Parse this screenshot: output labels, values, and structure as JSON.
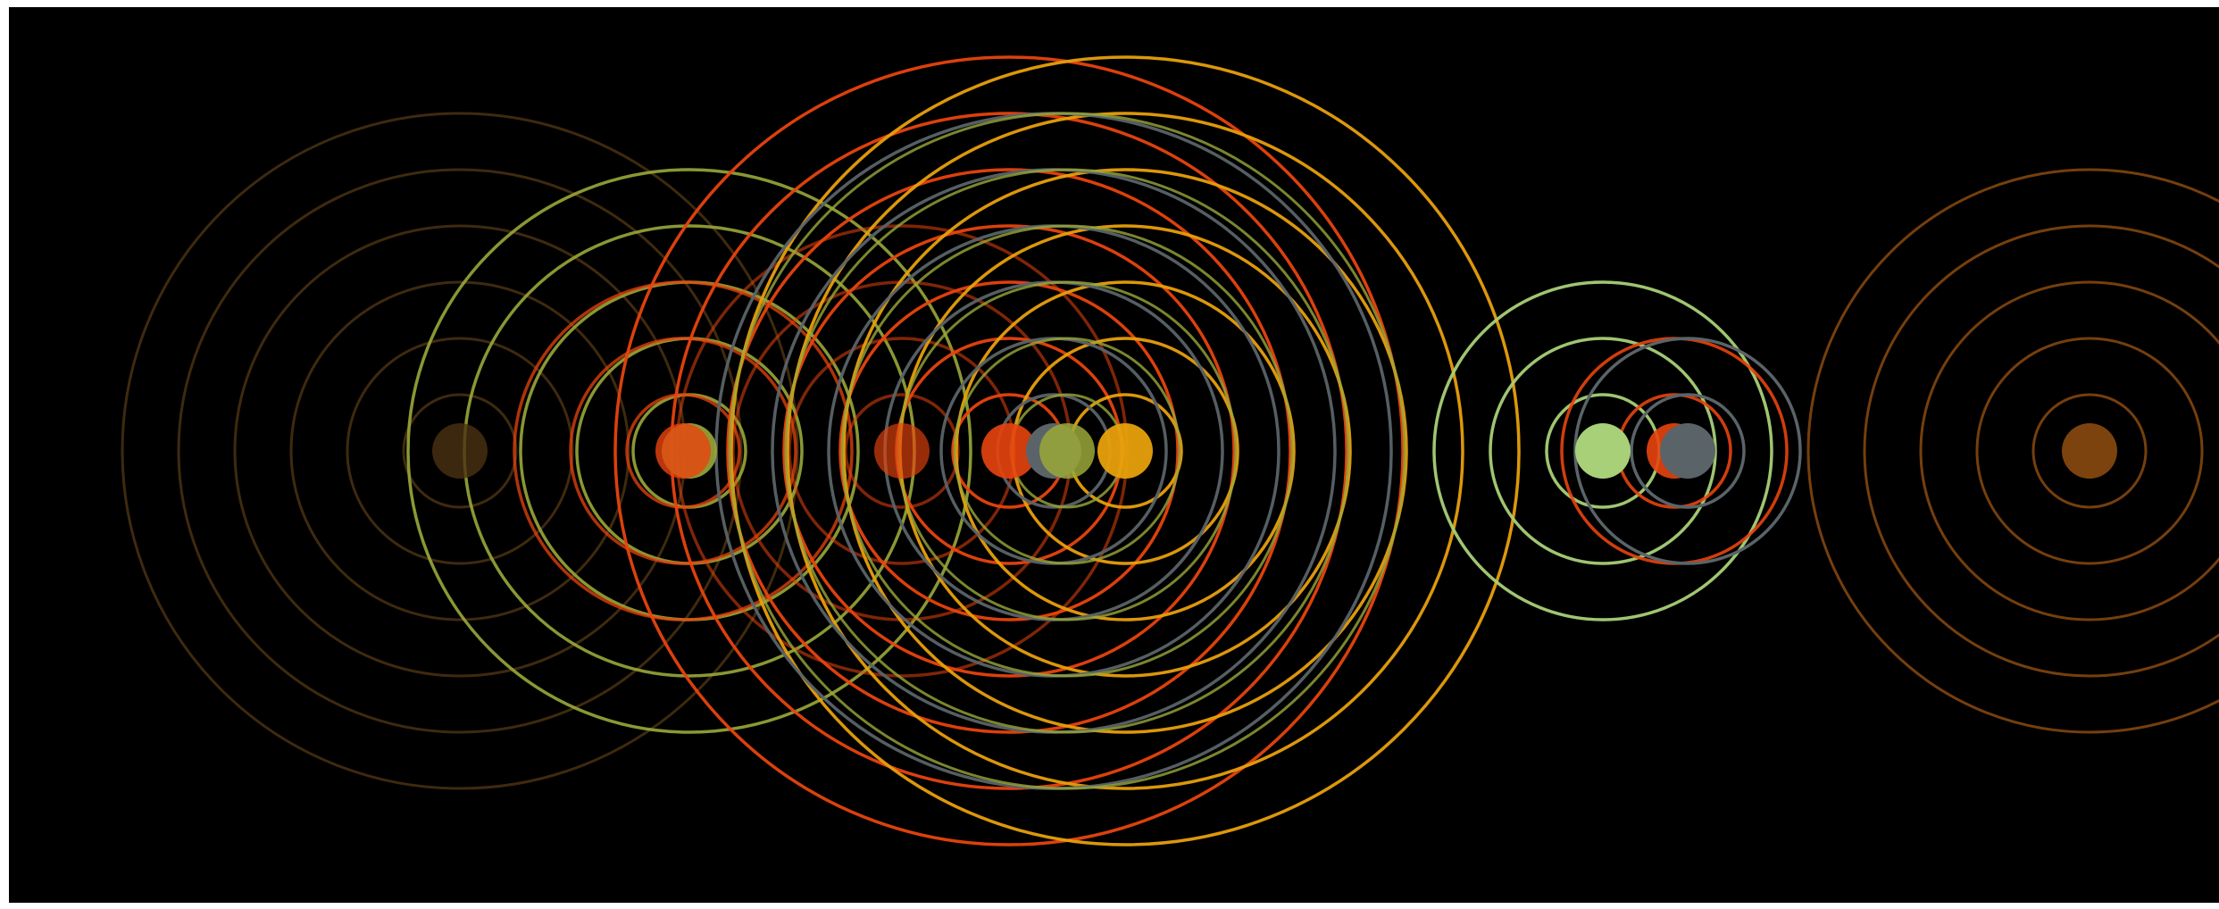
{
  "palette": {
    "background": "#000000",
    "brown": "#4a3212",
    "olive": "#9aa83a",
    "red_orange": "#e8440e",
    "amber": "#e8a00c",
    "slate": "#5a6468",
    "light_green": "#a8d078",
    "dark_orange": "#8a4a10"
  },
  "ring_groups": [
    {
      "id": "g1",
      "color_key": "brown",
      "dot_color_key": "brown",
      "rings": 6,
      "opacity": 0.85,
      "dot_opacity": 0.8
    },
    {
      "id": "g2",
      "color_key": "olive",
      "dot_color_key": "olive",
      "rings": 5,
      "opacity": 0.9,
      "dot_opacity": 0.9
    },
    {
      "id": "g3",
      "color_key": "red_orange",
      "dot_color_key": "red_orange",
      "rings": 3,
      "opacity": 0.75,
      "dot_opacity": 0.8
    },
    {
      "id": "g4",
      "color_key": "red_orange",
      "dot_color_key": "red_orange",
      "rings": 4,
      "opacity": 0.55,
      "dot_opacity": 0.65
    },
    {
      "id": "g5",
      "color_key": "red_orange",
      "dot_color_key": "red_orange",
      "rings": 7,
      "opacity": 0.95,
      "dot_opacity": 0.9
    },
    {
      "id": "g6",
      "color_key": "amber",
      "dot_color_key": "amber",
      "rings": 7,
      "opacity": 0.95,
      "dot_opacity": 0.95
    },
    {
      "id": "g7",
      "color_key": "slate",
      "dot_color_key": "slate",
      "rings": 6,
      "opacity": 0.95,
      "dot_opacity": 1
    },
    {
      "id": "g8",
      "color_key": "olive",
      "dot_color_key": "olive",
      "rings": 6,
      "opacity": 0.8,
      "dot_opacity": 0.85
    },
    {
      "id": "g9",
      "color_key": "light_green",
      "dot_color_key": "light_green",
      "rings": 3,
      "opacity": 0.95,
      "dot_opacity": 1
    },
    {
      "id": "g10",
      "color_key": "red_orange",
      "dot_color_key": "red_orange",
      "rings": 2,
      "opacity": 0.9,
      "dot_opacity": 0.9
    },
    {
      "id": "g11",
      "color_key": "slate",
      "dot_color_key": "slate",
      "rings": 2,
      "opacity": 1,
      "dot_opacity": 1
    },
    {
      "id": "g12",
      "color_key": "dark_orange",
      "dot_color_key": "dark_orange",
      "rings": 5,
      "opacity": 0.85,
      "dot_opacity": 0.9
    }
  ]
}
